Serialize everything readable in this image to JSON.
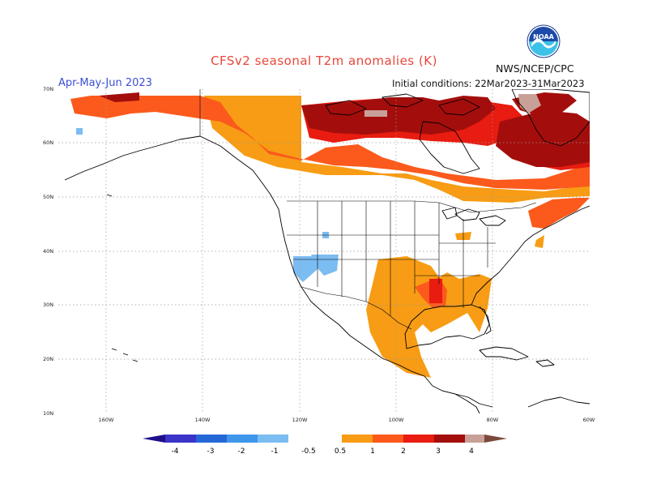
{
  "title": "CFSv2 seasonal T2m anomalies (K)",
  "organization": "NWS/NCEP/CPC",
  "logo_text": "NOAA",
  "period": "Apr-May-Jun 2023",
  "initial_conditions": "Initial conditions: 22Mar2023-31Mar2023",
  "map": {
    "lat_labels": [
      "70N",
      "60N",
      "50N",
      "40N",
      "30N",
      "20N",
      "10N"
    ],
    "lon_labels": [
      "160W",
      "140W",
      "120W",
      "100W",
      "80W",
      "60W"
    ],
    "land_color": "#ffffff",
    "grid": true
  },
  "colorbar": {
    "labels": [
      "-4",
      "-3",
      "-2",
      "-1",
      "-0.5",
      "0.5",
      "1",
      "2",
      "3",
      "4"
    ],
    "colors": [
      "#1d0f8c",
      "#3b34c8",
      "#2667d8",
      "#3e97ea",
      "#7bbcf2",
      "#ffffff",
      "#f79c14",
      "#fb5a1c",
      "#e81c10",
      "#a30e0c",
      "#c9a098",
      "#7b4a3c"
    ]
  },
  "colors": {
    "title": "#e8463a",
    "period": "#3b4fd4",
    "anom_0_5": "#f79c14",
    "anom_1": "#fb5a1c",
    "anom_2": "#e81c10",
    "anom_3": "#a30e0c",
    "anom_4": "#c9a098",
    "cold_0_5": "#7bbcf2"
  }
}
